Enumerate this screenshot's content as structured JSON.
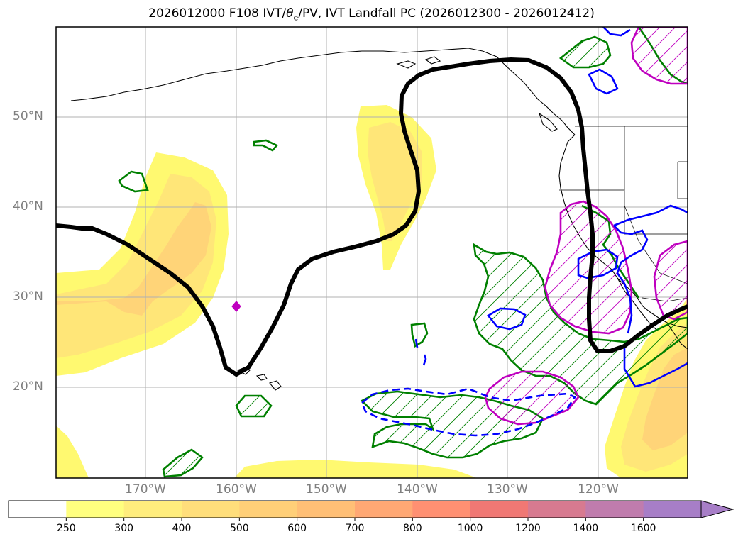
{
  "title": {
    "prefix": "2026012000 F108 IVT/",
    "theta": "θ",
    "theta_sub": "e",
    "suffix": "/PV, IVT Landfall PC (2026012300 - 2026012412)"
  },
  "map": {
    "lat_labels": [
      "50°N",
      "40°N",
      "30°N",
      "20°N"
    ],
    "lon_labels": [
      "170°W",
      "160°W",
      "150°W",
      "140°W",
      "130°W",
      "120°W"
    ]
  },
  "colorbar": {
    "levels": [
      "250",
      "300",
      "400",
      "500",
      "600",
      "700",
      "800",
      "1000",
      "1200",
      "1400",
      "1600"
    ],
    "colors": [
      "#ffffff",
      "#ffff7f",
      "#ffed7d",
      "#ffde7b",
      "#ffcf78",
      "#ffbf76",
      "#ffa874",
      "#ff9072",
      "#f07874",
      "#d77a90",
      "#c07cad",
      "#a77ec7"
    ],
    "extend": "max"
  },
  "colors": {
    "ivt_outer": "#fff970",
    "ivt_mid": "#ffe678",
    "ivt_inner": "#ffd478",
    "green_contour": "#008000",
    "blue_contour": "#0000ff",
    "magenta_contour": "#bf00bf",
    "black_contour": "#000000",
    "tick_label": "#7f7f7f"
  }
}
